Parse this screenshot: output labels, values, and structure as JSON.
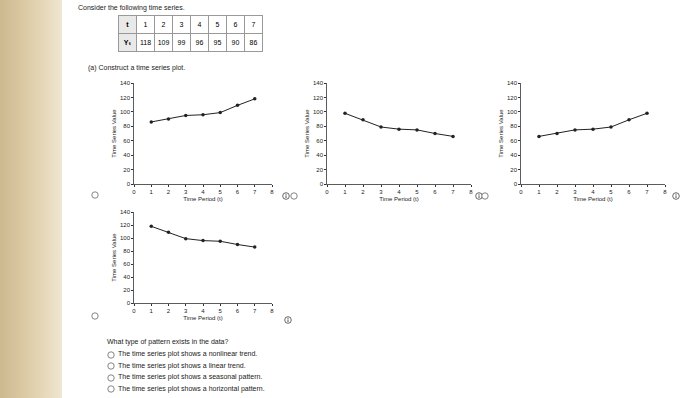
{
  "header": {
    "text": "Consider the following time series."
  },
  "table": {
    "rows": [
      [
        "t",
        1,
        2,
        3,
        4,
        5,
        6,
        7
      ],
      [
        "Yₜ",
        118,
        109,
        99,
        96,
        95,
        90,
        86
      ]
    ]
  },
  "part": {
    "text": "(a) Construct a time series plot."
  },
  "chart_data": [
    {
      "type": "line",
      "x": [
        1,
        2,
        3,
        4,
        5,
        6,
        7
      ],
      "values": [
        86,
        90,
        95,
        96,
        99,
        109,
        118
      ],
      "x_label": "Time Period (t)",
      "y_label": "Time Series Value",
      "color": "#222222",
      "marker": "circle",
      "xlim": [
        0,
        8
      ],
      "xticks": [
        0,
        1,
        2,
        3,
        4,
        5,
        6,
        7,
        8
      ],
      "ylim": [
        0,
        140
      ],
      "yticks": [
        0,
        20,
        40,
        60,
        80,
        100,
        120,
        140
      ],
      "grid": false
    },
    {
      "type": "line",
      "x": [
        1,
        2,
        3,
        4,
        5,
        6,
        7
      ],
      "values": [
        98,
        89,
        79,
        76,
        75,
        70,
        66
      ],
      "x_label": "Time Period (t)",
      "y_label": "Time Series Value",
      "color": "#222222",
      "marker": "circle",
      "xlim": [
        0,
        8
      ],
      "xticks": [
        0,
        1,
        2,
        3,
        4,
        5,
        6,
        7,
        8
      ],
      "ylim": [
        0,
        140
      ],
      "yticks": [
        0,
        20,
        40,
        60,
        80,
        100,
        120,
        140
      ],
      "grid": false
    },
    {
      "type": "line",
      "x": [
        1,
        2,
        3,
        4,
        5,
        6,
        7
      ],
      "values": [
        66,
        70,
        75,
        76,
        79,
        89,
        98
      ],
      "x_label": "Time Period (t)",
      "y_label": "Time Series Value",
      "color": "#222222",
      "marker": "circle",
      "xlim": [
        0,
        8
      ],
      "xticks": [
        0,
        1,
        2,
        3,
        4,
        5,
        6,
        7,
        8
      ],
      "ylim": [
        0,
        140
      ],
      "yticks": [
        0,
        20,
        40,
        60,
        80,
        100,
        120,
        140
      ],
      "grid": false
    },
    {
      "type": "line",
      "x": [
        1,
        2,
        3,
        4,
        5,
        6,
        7
      ],
      "values": [
        118,
        109,
        99,
        96,
        95,
        90,
        86
      ],
      "x_label": "Time Period (t)",
      "y_label": "Time Series Value",
      "color": "#222222",
      "marker": "circle",
      "xlim": [
        0,
        8
      ],
      "xticks": [
        0,
        1,
        2,
        3,
        4,
        5,
        6,
        7,
        8
      ],
      "ylim": [
        0,
        140
      ],
      "yticks": [
        0,
        20,
        40,
        60,
        80,
        100,
        120,
        140
      ],
      "grid": false
    }
  ],
  "question": {
    "text": "What type of pattern exists in the data?",
    "options": [
      "The time series plot shows a nonlinear trend.",
      "The time series plot shows a linear trend.",
      "The time series plot shows a seasonal pattern.",
      "The time series plot shows a horizontal pattern."
    ]
  }
}
